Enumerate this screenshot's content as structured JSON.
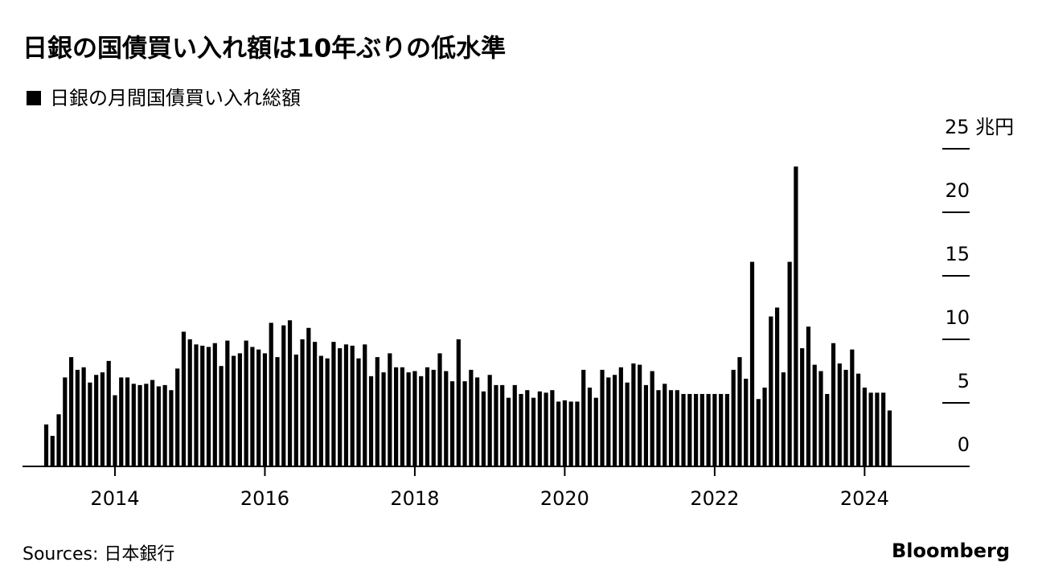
{
  "chart_data": {
    "type": "bar",
    "title": "日銀の国債買い入れ額は10年ぶりの低水準",
    "source": "Sources: 日本銀行",
    "brand": "Bloomberg",
    "categories": [
      null,
      null,
      null,
      null,
      null,
      null,
      null,
      null,
      null,
      null,
      null,
      "2014",
      null,
      null,
      null,
      null,
      null,
      null,
      null,
      null,
      null,
      null,
      null,
      null,
      null,
      null,
      null,
      null,
      null,
      null,
      null,
      null,
      null,
      null,
      null,
      "2016",
      null,
      null,
      null,
      null,
      null,
      null,
      null,
      null,
      null,
      null,
      null,
      null,
      null,
      null,
      null,
      null,
      null,
      null,
      null,
      null,
      null,
      null,
      null,
      "2018",
      null,
      null,
      null,
      null,
      null,
      null,
      null,
      null,
      null,
      null,
      null,
      null,
      null,
      null,
      null,
      null,
      null,
      null,
      null,
      null,
      null,
      null,
      null,
      "2020",
      null,
      null,
      null,
      null,
      null,
      null,
      null,
      null,
      null,
      null,
      null,
      null,
      null,
      null,
      null,
      null,
      null,
      null,
      null,
      null,
      null,
      null,
      null,
      "2022",
      null,
      null,
      null,
      null,
      null,
      null,
      null,
      null,
      null,
      null,
      null,
      null,
      null,
      null,
      null,
      null,
      null,
      null,
      null,
      null,
      null,
      null,
      null,
      "2024",
      null,
      null,
      null,
      null
    ],
    "series": [
      {
        "name": "日銀の月間国債買い入れ総額",
        "color": "#000000",
        "values": [
          3.3,
          2.4,
          4.1,
          7.0,
          8.6,
          7.6,
          7.8,
          6.6,
          7.2,
          7.4,
          8.3,
          5.6,
          7.0,
          7.0,
          6.5,
          6.4,
          6.5,
          6.8,
          6.3,
          6.4,
          6.0,
          7.7,
          10.6,
          10.0,
          9.6,
          9.5,
          9.4,
          9.7,
          7.9,
          9.9,
          8.7,
          8.9,
          9.9,
          9.4,
          9.2,
          8.9,
          11.3,
          8.6,
          11.1,
          11.5,
          8.8,
          10.0,
          10.9,
          9.8,
          8.7,
          8.5,
          9.8,
          9.3,
          9.6,
          9.5,
          8.5,
          9.6,
          7.1,
          8.6,
          7.4,
          8.9,
          7.8,
          7.8,
          7.4,
          7.5,
          7.1,
          7.8,
          7.6,
          8.9,
          7.5,
          6.7,
          10.0,
          6.7,
          7.6,
          7.0,
          5.9,
          7.2,
          6.4,
          6.4,
          5.4,
          6.4,
          5.7,
          6.0,
          5.4,
          5.9,
          5.8,
          6.0,
          5.1,
          5.2,
          5.1,
          5.1,
          7.6,
          6.2,
          5.4,
          7.6,
          7.0,
          7.2,
          7.8,
          6.6,
          8.1,
          8.0,
          6.4,
          7.5,
          6.0,
          6.5,
          6.0,
          6.0,
          5.7,
          5.7,
          5.7,
          5.7,
          5.7,
          5.7,
          5.7,
          5.7,
          7.6,
          8.6,
          6.9,
          16.1,
          5.3,
          6.2,
          11.8,
          12.5,
          7.4,
          16.1,
          23.6,
          9.3,
          11.0,
          8.0,
          7.5,
          5.7,
          9.7,
          8.1,
          7.6,
          9.2,
          7.3,
          6.2,
          5.8,
          5.8,
          5.8,
          4.4
        ]
      }
    ],
    "ylim": [
      0,
      25
    ],
    "yticks": [
      0,
      5,
      10,
      15,
      20,
      {
        "value": 25,
        "label": "25 兆円"
      }
    ]
  }
}
